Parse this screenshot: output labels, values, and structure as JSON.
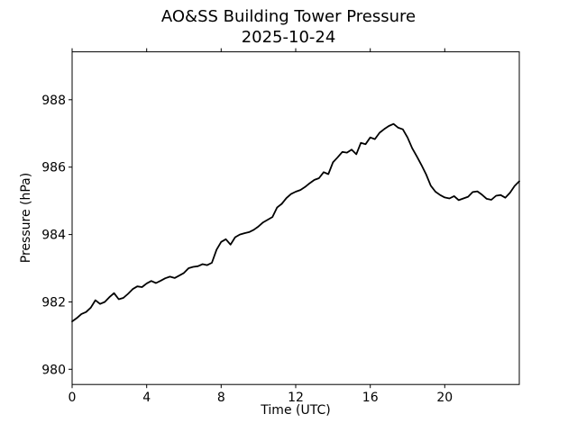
{
  "chart_data": {
    "type": "line",
    "title": "AO&SS Building Tower Pressure",
    "subtitle": "2025-10-24",
    "xlabel": "Time (UTC)",
    "ylabel": "Pressure (hPa)",
    "xlim": [
      0,
      24
    ],
    "ylim": [
      979.55,
      989.42
    ],
    "xticks": [
      0,
      4,
      8,
      12,
      16,
      20
    ],
    "yticks": [
      980,
      982,
      984,
      986,
      988
    ],
    "grid": false,
    "legend": false,
    "line_color": "#000000",
    "line_width": 1.8,
    "background_color": "#ffffff",
    "series": [
      {
        "name": "pressure",
        "x": [
          0,
          0.25,
          0.5,
          0.75,
          1,
          1.25,
          1.5,
          1.75,
          2,
          2.25,
          2.5,
          2.75,
          3,
          3.25,
          3.5,
          3.75,
          4,
          4.25,
          4.5,
          4.75,
          5,
          5.25,
          5.5,
          5.75,
          6,
          6.25,
          6.5,
          6.75,
          7,
          7.25,
          7.5,
          7.75,
          8,
          8.25,
          8.5,
          8.75,
          9,
          9.25,
          9.5,
          9.75,
          10,
          10.25,
          10.5,
          10.75,
          11,
          11.25,
          11.5,
          11.75,
          12,
          12.25,
          12.5,
          12.75,
          13,
          13.25,
          13.5,
          13.75,
          14,
          14.25,
          14.5,
          14.75,
          15,
          15.25,
          15.5,
          15.75,
          16,
          16.25,
          16.5,
          16.75,
          17,
          17.25,
          17.5,
          17.75,
          18,
          18.25,
          18.5,
          18.75,
          19,
          19.25,
          19.5,
          19.75,
          20,
          20.25,
          20.5,
          20.75,
          21,
          21.25,
          21.5,
          21.75,
          22,
          22.25,
          22.5,
          22.75,
          23,
          23.25,
          23.5,
          23.75,
          24
        ],
        "y": [
          981.42,
          981.52,
          981.64,
          981.7,
          981.83,
          982.05,
          981.94,
          982.0,
          982.14,
          982.26,
          982.08,
          982.12,
          982.24,
          982.38,
          982.46,
          982.44,
          982.55,
          982.62,
          982.56,
          982.63,
          982.7,
          982.75,
          982.71,
          982.78,
          982.86,
          983.0,
          983.04,
          983.06,
          983.12,
          983.09,
          983.16,
          983.55,
          983.78,
          983.86,
          983.7,
          983.92,
          984.0,
          984.04,
          984.07,
          984.14,
          984.24,
          984.36,
          984.44,
          984.52,
          984.8,
          984.91,
          985.08,
          985.2,
          985.27,
          985.32,
          985.41,
          985.52,
          985.62,
          985.67,
          985.85,
          985.79,
          986.14,
          986.29,
          986.45,
          986.43,
          986.52,
          986.38,
          986.72,
          986.68,
          986.88,
          986.83,
          987.02,
          987.13,
          987.22,
          987.28,
          987.17,
          987.12,
          986.88,
          986.56,
          986.32,
          986.06,
          985.78,
          985.45,
          985.27,
          985.17,
          985.1,
          985.07,
          985.14,
          985.02,
          985.07,
          985.12,
          985.26,
          985.28,
          985.18,
          985.06,
          985.03,
          985.15,
          985.17,
          985.09,
          985.24,
          985.44,
          985.58
        ]
      }
    ]
  }
}
